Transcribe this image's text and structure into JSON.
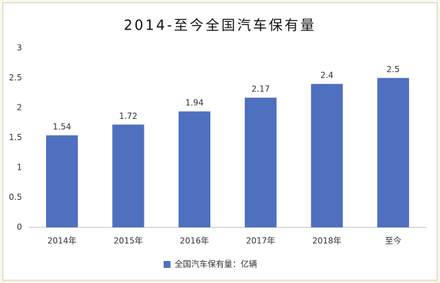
{
  "chart_data": {
    "type": "bar",
    "title": "2014-至今全国汽车保有量",
    "categories": [
      "2014年",
      "2015年",
      "2016年",
      "2017年",
      "2018年",
      "至今"
    ],
    "series": [
      {
        "name": "全国汽车保有量：亿辆",
        "color": "#4f6fbf",
        "values": [
          1.54,
          1.72,
          1.94,
          2.17,
          2.4,
          2.5
        ]
      }
    ],
    "ylim": [
      0,
      3
    ],
    "yticks": [
      0,
      0.5,
      1,
      1.5,
      2,
      2.5,
      3
    ],
    "grid": false,
    "legend": "bottom"
  }
}
